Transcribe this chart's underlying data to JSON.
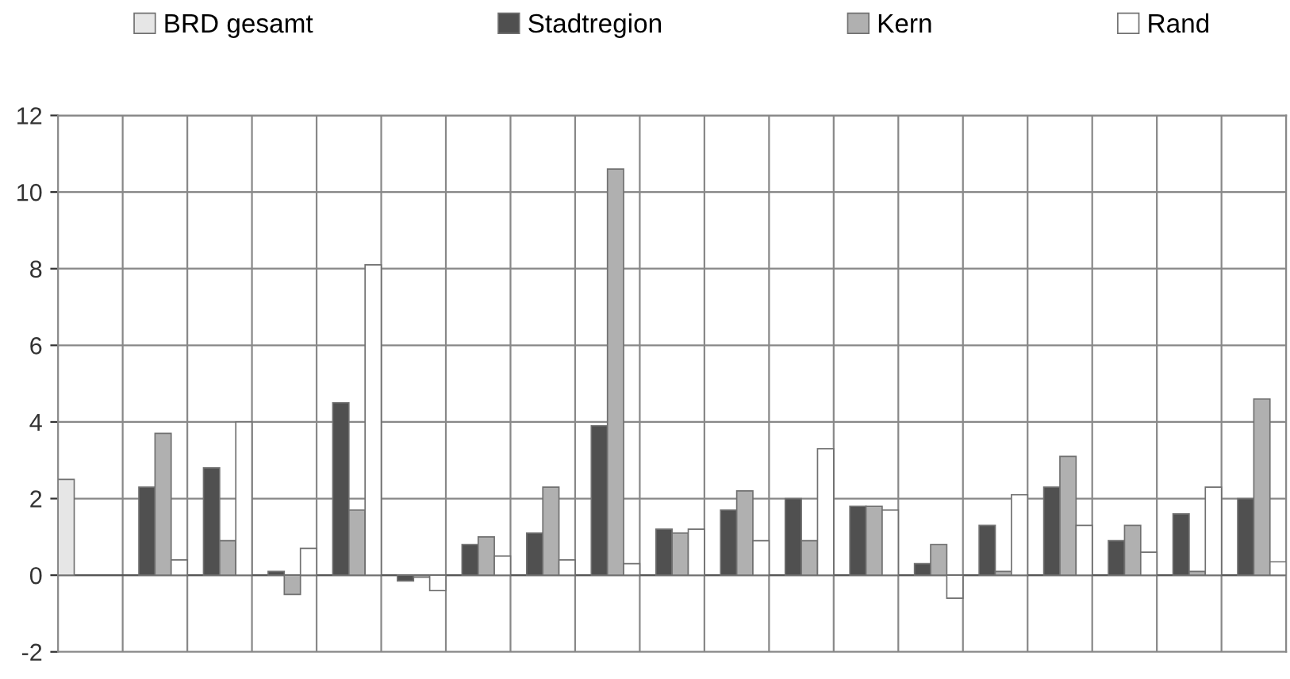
{
  "chart_data": {
    "type": "bar",
    "categories": [
      null,
      null,
      null,
      null,
      null,
      null,
      null,
      null,
      null,
      null,
      null,
      null,
      null,
      null,
      null,
      null,
      null,
      null,
      null
    ],
    "series": [
      {
        "name": "BRD gesamt",
        "color": "#e6e6e6",
        "values": [
          2.5,
          null,
          null,
          null,
          null,
          null,
          null,
          null,
          null,
          null,
          null,
          null,
          null,
          null,
          null,
          null,
          null,
          null,
          null
        ]
      },
      {
        "name": "Stadtregion",
        "color": "#505050",
        "values": [
          null,
          2.3,
          2.8,
          0.1,
          4.5,
          -0.15,
          0.8,
          1.1,
          3.9,
          1.2,
          1.7,
          2.0,
          1.8,
          0.3,
          1.3,
          2.3,
          0.9,
          1.6,
          2.0
        ]
      },
      {
        "name": "Kern",
        "color": "#b0b0b0",
        "values": [
          null,
          3.7,
          0.9,
          -0.5,
          1.7,
          -0.05,
          1.0,
          2.3,
          10.6,
          1.1,
          2.2,
          0.9,
          1.8,
          0.8,
          0.1,
          3.1,
          1.3,
          0.1,
          4.6
        ]
      },
      {
        "name": "Rand",
        "color": "#ffffff",
        "values": [
          null,
          0.4,
          4.0,
          0.7,
          8.1,
          -0.4,
          0.5,
          0.4,
          0.3,
          1.2,
          0.9,
          3.3,
          1.7,
          -0.6,
          2.1,
          1.3,
          0.6,
          2.3,
          0.35
        ]
      }
    ],
    "ylim": [
      -2,
      12
    ],
    "yticks": [
      -2,
      0,
      2,
      4,
      6,
      8,
      10,
      12
    ],
    "grid": true,
    "legend": "top",
    "tick_labels": "y"
  }
}
